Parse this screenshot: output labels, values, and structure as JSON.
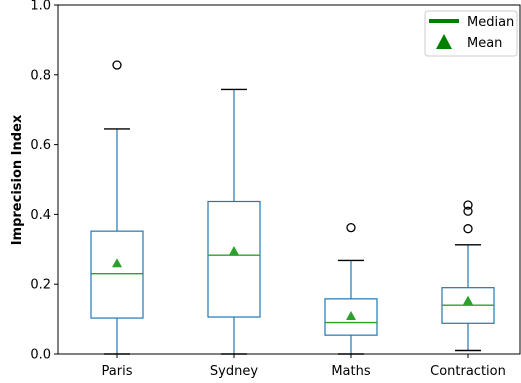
{
  "chart_data": {
    "type": "box",
    "ylabel": "Imprecision Index",
    "ylim": [
      0.0,
      1.0
    ],
    "yticks": [
      "0.0",
      "0.2",
      "0.4",
      "0.6",
      "0.8",
      "1.0"
    ],
    "categories": [
      "Paris",
      "Sydney",
      "Maths",
      "Contraction"
    ],
    "boxes": [
      {
        "whisker_low": 0.0,
        "q1": 0.103,
        "median": 0.23,
        "q3": 0.352,
        "whisker_high": 0.645,
        "mean": 0.26,
        "outliers": [
          0.828
        ]
      },
      {
        "whisker_low": 0.0,
        "q1": 0.106,
        "median": 0.283,
        "q3": 0.437,
        "whisker_high": 0.758,
        "mean": 0.295,
        "outliers": []
      },
      {
        "whisker_low": 0.0,
        "q1": 0.054,
        "median": 0.09,
        "q3": 0.158,
        "whisker_high": 0.268,
        "mean": 0.109,
        "outliers": [
          0.362
        ]
      },
      {
        "whisker_low": 0.01,
        "q1": 0.088,
        "median": 0.14,
        "q3": 0.19,
        "whisker_high": 0.313,
        "mean": 0.153,
        "outliers": [
          0.359,
          0.409,
          0.427
        ]
      }
    ],
    "legend": {
      "position": "top-right",
      "entries": [
        "Median",
        "Mean"
      ]
    },
    "grid": false,
    "colors": {
      "box": "#1f77b4",
      "median": "#2ca02c",
      "mean": "#2ca02c",
      "legend_median": "#008000",
      "legend_mean": "#008000",
      "whisker_cap": "#000000",
      "outlier": "#000000"
    }
  }
}
